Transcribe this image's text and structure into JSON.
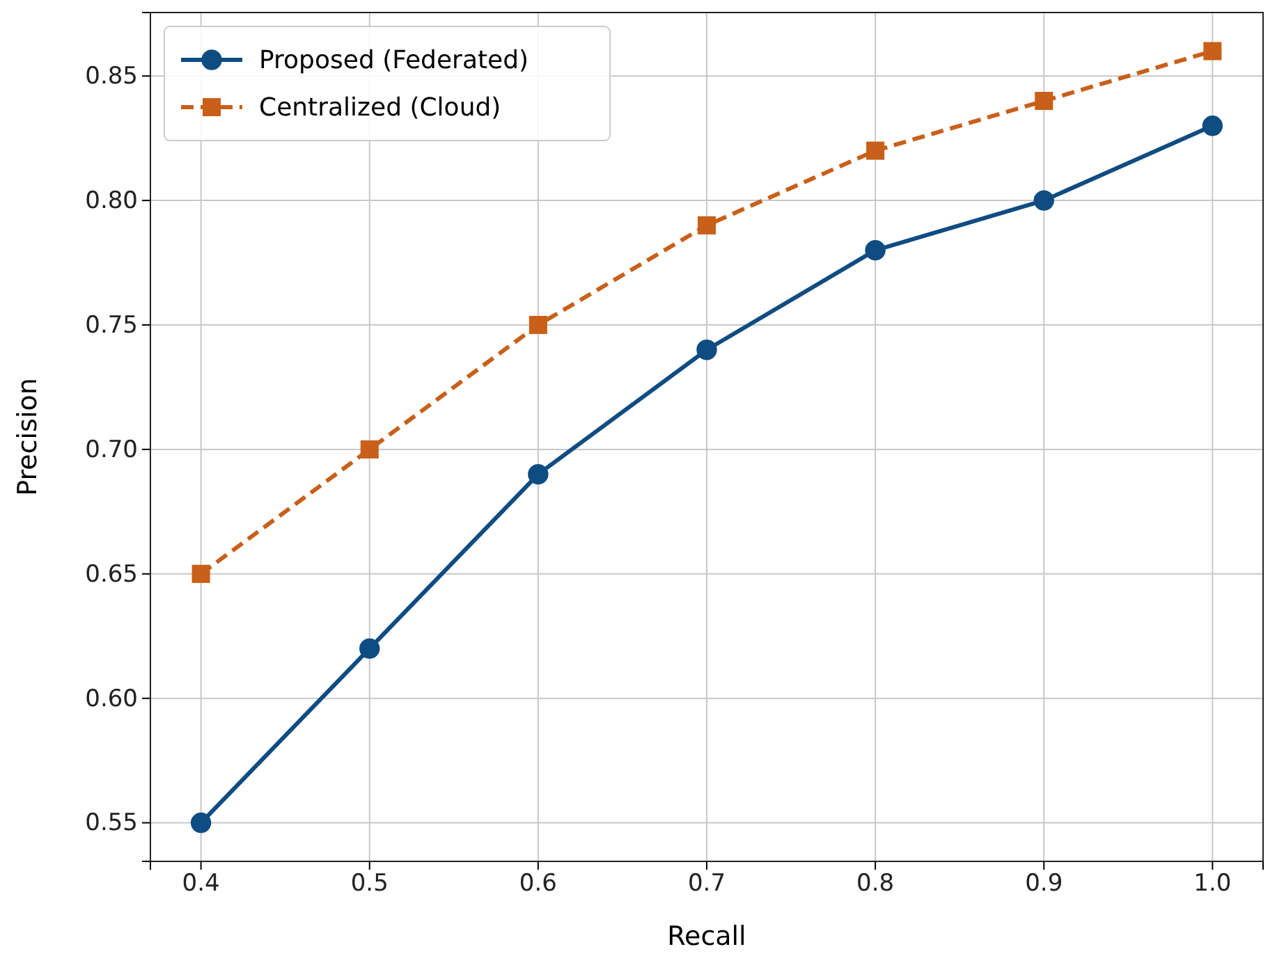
{
  "chart_data": {
    "type": "line",
    "xlabel": "Recall",
    "ylabel": "Precision",
    "x": [
      0.4,
      0.5,
      0.6,
      0.7,
      0.8,
      0.9,
      1.0
    ],
    "series": [
      {
        "name": "Proposed (Federated)",
        "color": "#0f4c81",
        "values": [
          0.55,
          0.62,
          0.69,
          0.74,
          0.78,
          0.8,
          0.83
        ],
        "marker": "circle",
        "line_style": "solid"
      },
      {
        "name": "Centralized (Cloud)",
        "color": "#c8601a",
        "values": [
          0.65,
          0.7,
          0.75,
          0.79,
          0.82,
          0.84,
          0.86
        ],
        "marker": "square",
        "line_style": "dashed"
      }
    ],
    "xlim": [
      0.37,
      1.03
    ],
    "xticks": [
      {
        "value": 0.4,
        "label": "0.4"
      },
      {
        "value": 0.5,
        "label": "0.5"
      },
      {
        "value": 0.6,
        "label": "0.6"
      },
      {
        "value": 0.7,
        "label": "0.7"
      },
      {
        "value": 0.8,
        "label": "0.8"
      },
      {
        "value": 0.9,
        "label": "0.9"
      },
      {
        "value": 1.0,
        "label": "1.0"
      }
    ],
    "ylim": [
      0.5345,
      0.8755
    ],
    "yticks": [
      {
        "value": 0.55,
        "label": "0.55"
      },
      {
        "value": 0.6,
        "label": "0.60"
      },
      {
        "value": 0.65,
        "label": "0.65"
      },
      {
        "value": 0.7,
        "label": "0.70"
      },
      {
        "value": 0.75,
        "label": "0.75"
      },
      {
        "value": 0.8,
        "label": "0.80"
      },
      {
        "value": 0.85,
        "label": "0.85"
      }
    ],
    "grid": true,
    "legend": "top left"
  }
}
